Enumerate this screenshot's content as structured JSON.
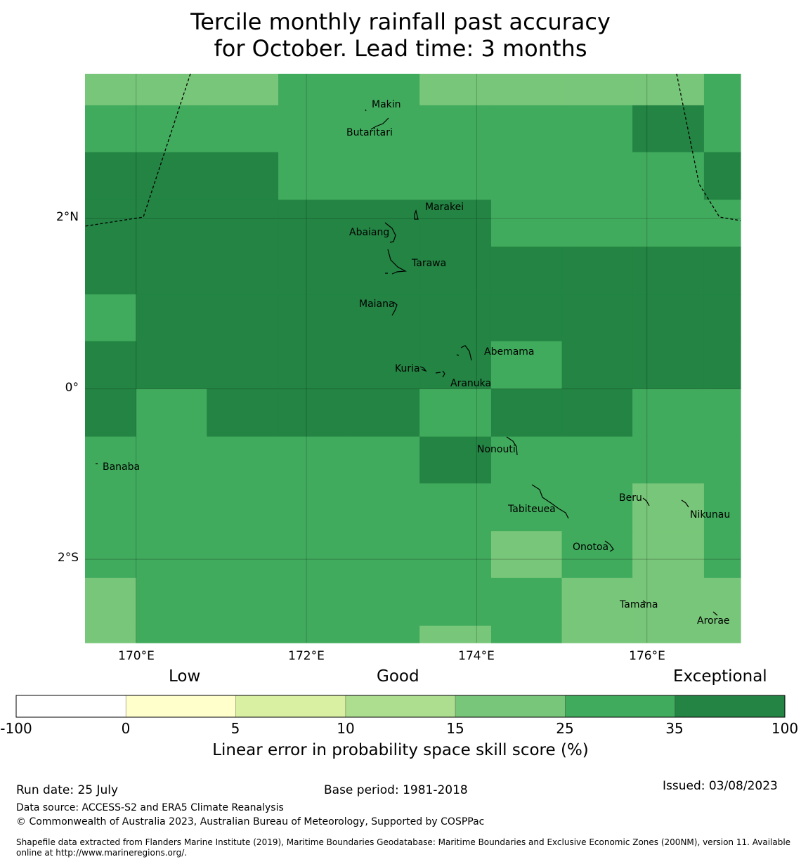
{
  "title": {
    "line1": "Tercile monthly rainfall past accuracy",
    "line2": "for October. Lead time: 3 months"
  },
  "map": {
    "lat_labels": [
      "2°N",
      "0°",
      "2°S"
    ],
    "lon_labels": [
      "170°E",
      "172°E",
      "174°E",
      "176°E"
    ],
    "places": [
      {
        "name": "Makin",
        "lon": 173.0,
        "lat": 3.3
      },
      {
        "name": "Butaritari",
        "lon": 172.8,
        "lat": 3.05
      },
      {
        "name": "Marakei",
        "lon": 173.3,
        "lat": 2.0
      },
      {
        "name": "Abaiang",
        "lon": 172.9,
        "lat": 1.85
      },
      {
        "name": "Tarawa",
        "lon": 173.0,
        "lat": 1.4
      },
      {
        "name": "Maiana",
        "lon": 173.0,
        "lat": 0.95
      },
      {
        "name": "Abemama",
        "lon": 173.85,
        "lat": 0.4
      },
      {
        "name": "Kuria",
        "lon": 173.4,
        "lat": 0.22
      },
      {
        "name": "Aranuka",
        "lon": 173.6,
        "lat": 0.18
      },
      {
        "name": "Nonouti",
        "lon": 174.4,
        "lat": -0.65
      },
      {
        "name": "Banaba",
        "lon": 169.5,
        "lat": -0.85
      },
      {
        "name": "Tabiteuea",
        "lon": 174.8,
        "lat": -1.4
      },
      {
        "name": "Beru",
        "lon": 176.0,
        "lat": -1.35
      },
      {
        "name": "Nikunau",
        "lon": 176.45,
        "lat": -1.35
      },
      {
        "name": "Onotoa",
        "lon": 175.6,
        "lat": -1.8
      },
      {
        "name": "Tamana",
        "lon": 176.0,
        "lat": -2.5
      },
      {
        "name": "Arorae",
        "lon": 176.8,
        "lat": -2.65
      }
    ]
  },
  "legend": {
    "categories": [
      "Low",
      "Good",
      "Exceptional"
    ],
    "ticks": [
      "-100",
      "0",
      "5",
      "10",
      "15",
      "25",
      "35",
      "100"
    ],
    "colors": [
      "#ffffff",
      "#ffffcc",
      "#d9f0a3",
      "#addd8e",
      "#78c679",
      "#41ab5d",
      "#238443"
    ],
    "title": "Linear error in probability space skill score (%)"
  },
  "footer": {
    "run_date": "Run date: 25 July",
    "base_period": "Base period: 1981-2018",
    "issued": "Issued: 03/08/2023",
    "data_source": "Data source: ACCESS-S2 and ERA5 Climate Reanalysis",
    "copyright": "© Commonwealth of Australia 2023, Australian Bureau of Meteorology, Supported by COSPPac",
    "shapefile": "Shapefile data extracted from Flanders Marine Institute (2019), Maritime Boundaries Geodatabase: Maritime Boundaries and Exclusive Economic Zones (200NM), version 11. Available online at http://www.marineregions.org/."
  },
  "chart_data": {
    "type": "heatmap",
    "title": "Tercile monthly rainfall past accuracy for October. Lead time: 3 months",
    "xlabel": "",
    "ylabel": "",
    "legend_title": "Linear error in probability space skill score (%)",
    "bins": [
      -100,
      0,
      5,
      10,
      15,
      25,
      35,
      100
    ],
    "bin_colors": [
      "#ffffff",
      "#ffffcc",
      "#d9f0a3",
      "#addd8e",
      "#78c679",
      "#41ab5d",
      "#238443"
    ],
    "lon_range": [
      169.4,
      177.1
    ],
    "lat_range": [
      -2.98,
      3.7
    ],
    "lon_edges": [
      169.4,
      170.0,
      170.83,
      171.67,
      172.5,
      173.33,
      174.17,
      175.0,
      175.83,
      176.67,
      177.1
    ],
    "lat_edges": [
      3.7,
      3.33,
      2.78,
      2.22,
      1.67,
      1.11,
      0.56,
      0.0,
      -0.56,
      -1.11,
      -1.67,
      -2.22,
      -2.78,
      -2.98
    ],
    "skill_class": [
      [
        4,
        4,
        4,
        5,
        5,
        4,
        4,
        4,
        4,
        5
      ],
      [
        5,
        5,
        5,
        5,
        5,
        5,
        5,
        5,
        6,
        5
      ],
      [
        6,
        6,
        6,
        5,
        5,
        5,
        5,
        5,
        5,
        6
      ],
      [
        6,
        6,
        6,
        6,
        6,
        6,
        5,
        5,
        5,
        5
      ],
      [
        6,
        6,
        6,
        6,
        6,
        6,
        6,
        6,
        6,
        6
      ],
      [
        5,
        6,
        6,
        6,
        6,
        6,
        6,
        6,
        6,
        6
      ],
      [
        6,
        6,
        6,
        6,
        6,
        6,
        5,
        6,
        6,
        6
      ],
      [
        6,
        5,
        6,
        6,
        6,
        5,
        6,
        6,
        5,
        5
      ],
      [
        5,
        5,
        5,
        5,
        5,
        6,
        5,
        5,
        5,
        5
      ],
      [
        5,
        5,
        5,
        5,
        5,
        5,
        5,
        5,
        4,
        5
      ],
      [
        5,
        5,
        5,
        5,
        5,
        5,
        4,
        5,
        4,
        5
      ],
      [
        4,
        5,
        5,
        5,
        5,
        5,
        5,
        4,
        4,
        4
      ],
      [
        4,
        5,
        5,
        5,
        5,
        4,
        5,
        4,
        4,
        4
      ]
    ],
    "gridlines": true,
    "boundaries": true
  }
}
